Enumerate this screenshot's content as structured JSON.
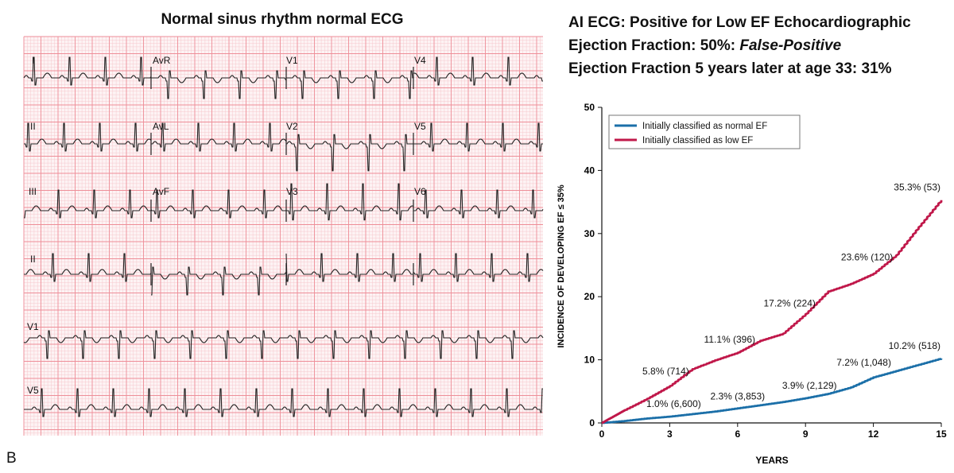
{
  "ecg_panel": {
    "title": "Normal sinus rhythm normal ECG",
    "panel_label": "B",
    "leads": [
      "I",
      "AvR",
      "V1",
      "V4",
      "II",
      "AvL",
      "V2",
      "V5",
      "III",
      "AvF",
      "V3",
      "V6",
      "II",
      "V1",
      "V5"
    ]
  },
  "ai_result": {
    "line1": "AI ECG:  Positive for Low EF Echocardiographic",
    "line2_prefix": "Ejection Fraction: 50%: ",
    "line2_emphasis": "False-Positive",
    "line3": "Ejection Fraction 5 years later at age 33: 31%"
  },
  "chart_data": {
    "type": "line",
    "title": "",
    "xlabel": "YEARS",
    "ylabel": "INCIDENCE OF DEVELOPING EF ≤ 35%",
    "xlim": [
      0,
      15
    ],
    "ylim": [
      0,
      50
    ],
    "xticks": [
      0,
      3,
      6,
      9,
      12,
      15
    ],
    "yticks": [
      0,
      10,
      20,
      30,
      40,
      50
    ],
    "legend_position": "top-left",
    "series": [
      {
        "name": "Initially classified as normal EF",
        "color": "#1b6fa8",
        "x": [
          0,
          1,
          2,
          3,
          4,
          5,
          6,
          7,
          8,
          9,
          10,
          11,
          12,
          13,
          14,
          15
        ],
        "y": [
          0,
          0.3,
          0.7,
          1.0,
          1.4,
          1.8,
          2.3,
          2.8,
          3.3,
          3.9,
          4.6,
          5.6,
          7.2,
          8.2,
          9.2,
          10.2
        ]
      },
      {
        "name": "Initially classified as low EF",
        "color": "#c0184a",
        "x": [
          0,
          0.5,
          1,
          2,
          3,
          4,
          5,
          6,
          7,
          8,
          9,
          10,
          11,
          12,
          13,
          14,
          15
        ],
        "y": [
          0,
          1.0,
          2.0,
          3.8,
          5.8,
          8.5,
          9.9,
          11.1,
          13.0,
          14.1,
          17.2,
          20.8,
          22.0,
          23.6,
          26.5,
          31.0,
          35.3
        ]
      }
    ],
    "annotations": [
      {
        "text": "1.0% (6,600)",
        "x": 3,
        "y": 1.0,
        "series": 0
      },
      {
        "text": "2.3% (3,853)",
        "x": 6,
        "y": 2.3,
        "series": 0
      },
      {
        "text": "3.9% (2,129)",
        "x": 9,
        "y": 3.9,
        "series": 0
      },
      {
        "text": "7.2% (1,048)",
        "x": 12,
        "y": 7.2,
        "series": 0
      },
      {
        "text": "10.2% (518)",
        "x": 15,
        "y": 10.2,
        "series": 0
      },
      {
        "text": "5.8% (714)",
        "x": 3,
        "y": 5.8,
        "series": 1
      },
      {
        "text": "11.1% (396)",
        "x": 6,
        "y": 11.1,
        "series": 1
      },
      {
        "text": "17.2% (224)",
        "x": 9,
        "y": 17.2,
        "series": 1
      },
      {
        "text": "23.6% (120)",
        "x": 12,
        "y": 23.6,
        "series": 1
      },
      {
        "text": "35.3% (53)",
        "x": 15,
        "y": 35.3,
        "series": 1
      }
    ]
  }
}
